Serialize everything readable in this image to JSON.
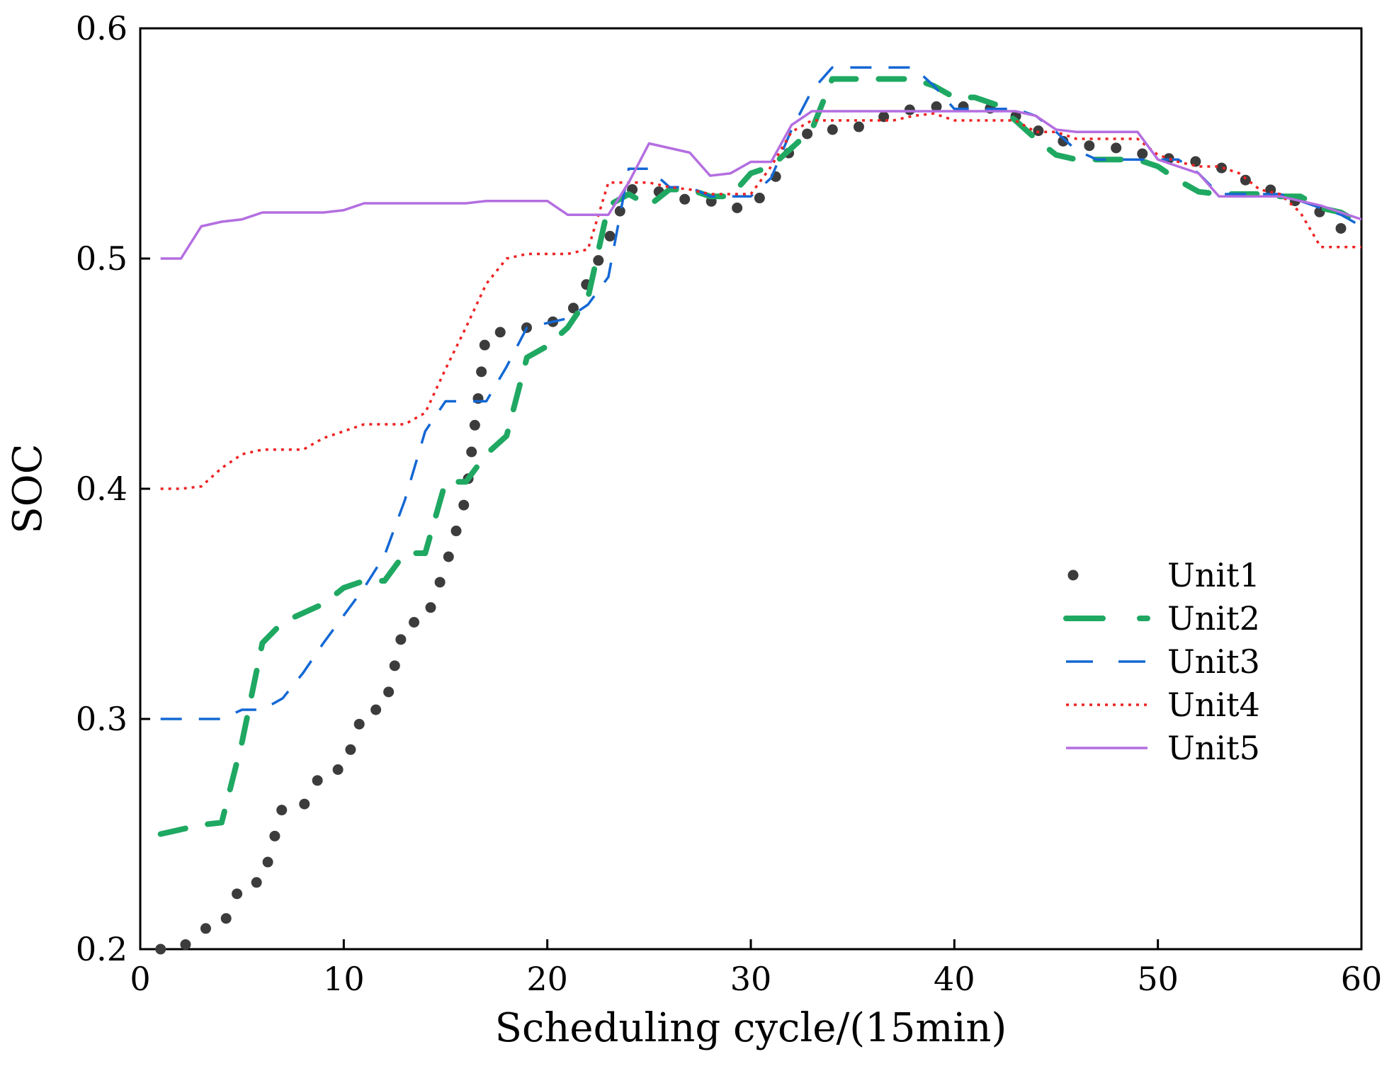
{
  "chart_data": {
    "type": "line",
    "title": "",
    "xlabel": "Scheduling cycle/(15min)",
    "ylabel": "SOC",
    "xlim": [
      0,
      60
    ],
    "ylim": [
      0.2,
      0.6
    ],
    "xticks": [
      0,
      10,
      20,
      30,
      40,
      50,
      60
    ],
    "xtick_labels": [
      "0",
      "10",
      "20",
      "30",
      "40",
      "50",
      "60"
    ],
    "yticks": [
      0.2,
      0.3,
      0.4,
      0.5,
      0.6
    ],
    "ytick_labels": [
      "0.2",
      "0.3",
      "0.4",
      "0.5",
      "0.6"
    ],
    "grid": false,
    "legend_position": "right",
    "x": [
      1,
      2,
      3,
      4,
      5,
      6,
      7,
      8,
      9,
      10,
      11,
      12,
      13,
      14,
      15,
      16,
      17,
      18,
      19,
      20,
      21,
      22,
      23,
      24,
      25,
      26,
      27,
      28,
      29,
      30,
      31,
      32,
      33,
      34,
      35,
      36,
      37,
      38,
      39,
      40,
      41,
      42,
      43,
      44,
      45,
      46,
      47,
      48,
      49,
      50,
      51,
      52,
      53,
      54,
      55,
      56,
      57,
      58,
      59,
      60
    ],
    "series": [
      {
        "name": "Unit1",
        "color": "#3c3c3c",
        "style": "bold-dot",
        "values": [
          0.2,
          0.2,
          0.209,
          0.209,
          0.229,
          0.229,
          0.262,
          0.262,
          0.278,
          0.278,
          0.304,
          0.304,
          0.342,
          0.342,
          0.366,
          0.396,
          0.468,
          0.468,
          0.47,
          0.472,
          0.474,
          0.49,
          0.508,
          0.53,
          0.53,
          0.528,
          0.525,
          0.525,
          0.522,
          0.522,
          0.532,
          0.548,
          0.556,
          0.556,
          0.556,
          0.56,
          0.563,
          0.565,
          0.566,
          0.566,
          0.566,
          0.565,
          0.562,
          0.556,
          0.552,
          0.549,
          0.549,
          0.548,
          0.546,
          0.544,
          0.543,
          0.542,
          0.54,
          0.535,
          0.532,
          0.528,
          0.524,
          0.52,
          0.513,
          0.513
        ]
      },
      {
        "name": "Unit2",
        "color": "#1fa862",
        "style": "long-dash",
        "values": [
          0.25,
          0.252,
          0.254,
          0.255,
          0.29,
          0.333,
          0.342,
          0.346,
          0.35,
          0.357,
          0.36,
          0.36,
          0.372,
          0.372,
          0.403,
          0.403,
          0.415,
          0.423,
          0.457,
          0.462,
          0.47,
          0.483,
          0.523,
          0.528,
          0.523,
          0.53,
          0.53,
          0.527,
          0.527,
          0.537,
          0.54,
          0.548,
          0.556,
          0.578,
          0.578,
          0.578,
          0.578,
          0.578,
          0.575,
          0.57,
          0.57,
          0.567,
          0.56,
          0.552,
          0.545,
          0.543,
          0.543,
          0.543,
          0.543,
          0.54,
          0.534,
          0.529,
          0.528,
          0.528,
          0.528,
          0.527,
          0.527,
          0.522,
          0.52,
          0.515
        ]
      },
      {
        "name": "Unit3",
        "color": "#1468d4",
        "style": "dash",
        "values": [
          0.3,
          0.3,
          0.3,
          0.3,
          0.304,
          0.304,
          0.309,
          0.32,
          0.333,
          0.345,
          0.357,
          0.371,
          0.395,
          0.425,
          0.438,
          0.438,
          0.438,
          0.453,
          0.47,
          0.472,
          0.474,
          0.48,
          0.492,
          0.539,
          0.539,
          0.531,
          0.531,
          0.527,
          0.527,
          0.527,
          0.535,
          0.556,
          0.573,
          0.583,
          0.583,
          0.583,
          0.583,
          0.583,
          0.575,
          0.565,
          0.565,
          0.565,
          0.565,
          0.562,
          0.555,
          0.547,
          0.543,
          0.543,
          0.543,
          0.543,
          0.543,
          0.537,
          0.528,
          0.528,
          0.528,
          0.528,
          0.525,
          0.522,
          0.519,
          0.514
        ]
      },
      {
        "name": "Unit4",
        "color": "#ee2222",
        "style": "dot",
        "values": [
          0.4,
          0.4,
          0.401,
          0.409,
          0.415,
          0.417,
          0.417,
          0.417,
          0.422,
          0.425,
          0.428,
          0.428,
          0.428,
          0.433,
          0.452,
          0.47,
          0.489,
          0.5,
          0.502,
          0.502,
          0.502,
          0.504,
          0.533,
          0.533,
          0.533,
          0.531,
          0.53,
          0.528,
          0.528,
          0.528,
          0.54,
          0.555,
          0.56,
          0.56,
          0.56,
          0.56,
          0.56,
          0.562,
          0.563,
          0.56,
          0.56,
          0.56,
          0.56,
          0.555,
          0.555,
          0.552,
          0.552,
          0.552,
          0.552,
          0.545,
          0.542,
          0.54,
          0.54,
          0.537,
          0.53,
          0.528,
          0.52,
          0.505,
          0.505,
          0.505
        ]
      },
      {
        "name": "Unit5",
        "color": "#b46ee0",
        "style": "solid",
        "values": [
          0.5,
          0.5,
          0.514,
          0.516,
          0.517,
          0.52,
          0.52,
          0.52,
          0.52,
          0.521,
          0.524,
          0.524,
          0.524,
          0.524,
          0.524,
          0.524,
          0.525,
          0.525,
          0.525,
          0.525,
          0.519,
          0.519,
          0.519,
          0.533,
          0.55,
          0.548,
          0.546,
          0.536,
          0.537,
          0.542,
          0.542,
          0.558,
          0.564,
          0.564,
          0.564,
          0.564,
          0.564,
          0.564,
          0.564,
          0.564,
          0.564,
          0.564,
          0.564,
          0.562,
          0.556,
          0.555,
          0.555,
          0.555,
          0.555,
          0.543,
          0.54,
          0.537,
          0.527,
          0.527,
          0.527,
          0.527,
          0.525,
          0.523,
          0.52,
          0.517
        ]
      }
    ]
  }
}
